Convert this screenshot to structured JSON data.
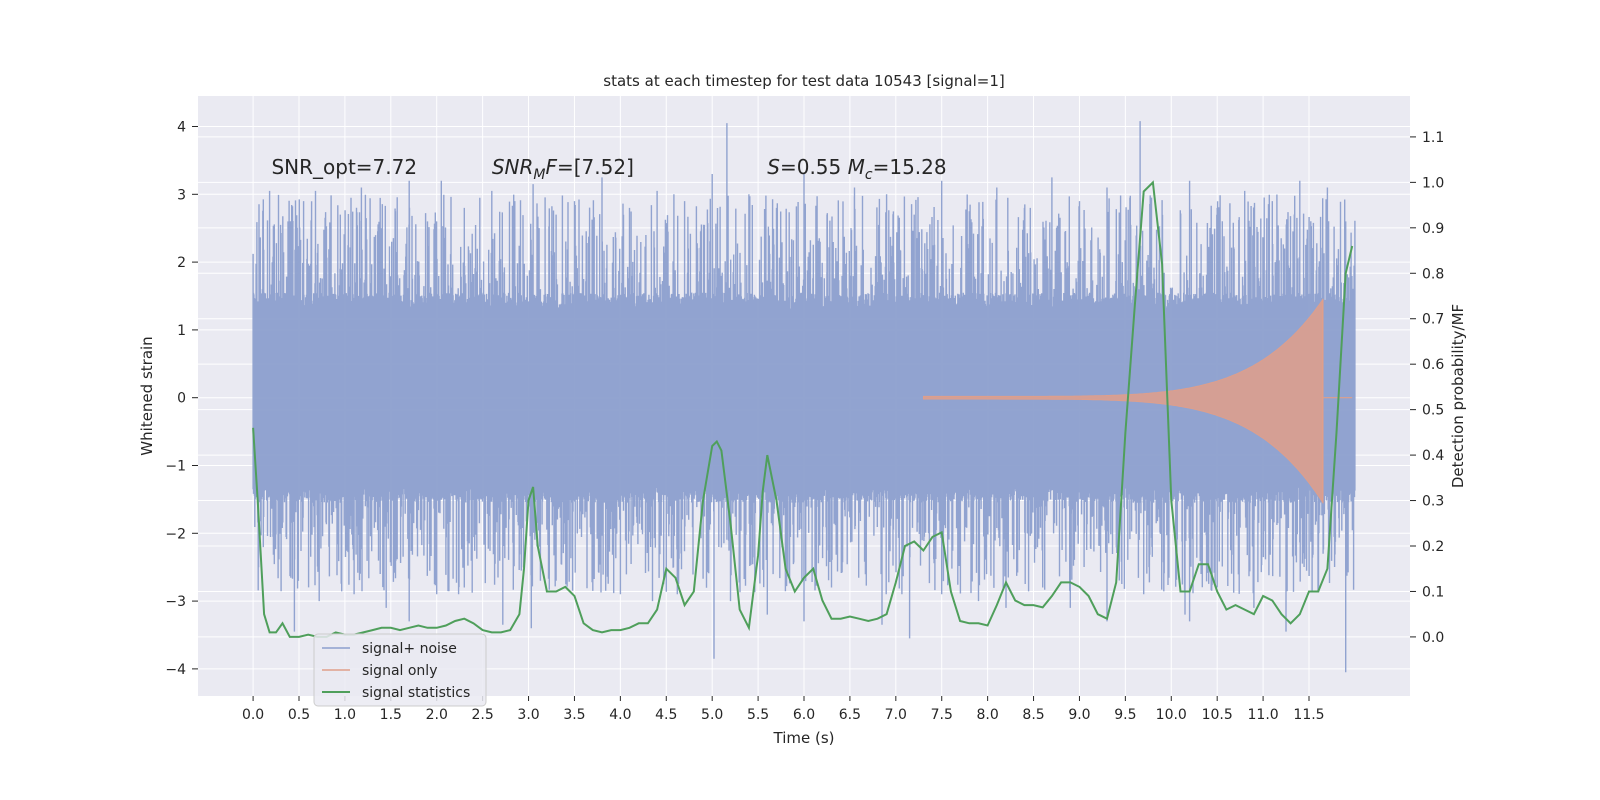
{
  "chart_data": {
    "type": "line",
    "title": "stats at each timestep for test data 10543 [signal=1]",
    "xlabel": "Time (s)",
    "ylabel": "Whitened strain",
    "y2label": "Detection probability/MF",
    "xlim": [
      -0.6,
      12.6
    ],
    "ylim": [
      -4.4,
      4.45
    ],
    "y2lim": [
      -0.13,
      1.19
    ],
    "x_ticks": [
      0.0,
      0.5,
      1.0,
      1.5,
      2.0,
      2.5,
      3.0,
      3.5,
      4.0,
      4.5,
      5.0,
      5.5,
      6.0,
      6.5,
      7.0,
      7.5,
      8.0,
      8.5,
      9.0,
      9.5,
      10.0,
      10.5,
      11.0,
      11.5
    ],
    "x_tick_labels": [
      "0.0",
      "0.5",
      "1.0",
      "1.5",
      "2.0",
      "2.5",
      "3.0",
      "3.5",
      "4.0",
      "4.5",
      "5.0",
      "5.5",
      "6.0",
      "6.5",
      "7.0",
      "7.5",
      "8.0",
      "8.5",
      "9.0",
      "9.5",
      "10.0",
      "10.5",
      "11.0",
      "11.5"
    ],
    "y_ticks": [
      -4,
      -3,
      -2,
      -1,
      0,
      1,
      2,
      3,
      4
    ],
    "y_tick_labels": [
      "−4",
      "−3",
      "−2",
      "−1",
      "0",
      "1",
      "2",
      "3",
      "4"
    ],
    "y2_ticks": [
      0.0,
      0.1,
      0.2,
      0.3,
      0.4,
      0.5,
      0.6,
      0.7,
      0.8,
      0.9,
      1.0,
      1.1
    ],
    "y2_tick_labels": [
      "0.0",
      "0.1",
      "0.2",
      "0.3",
      "0.4",
      "0.5",
      "0.6",
      "0.7",
      "0.8",
      "0.9",
      "1.0",
      "1.1"
    ],
    "grid": true,
    "legend_position": "lower-left",
    "annotations": [
      {
        "parts": [
          {
            "t": "SNR_opt=7.72",
            "style": "normal"
          }
        ],
        "x": 0.2,
        "y": 3.3
      },
      {
        "parts": [
          {
            "t": "SNR",
            "style": "italic"
          },
          {
            "t": "M",
            "style": "italic-sub"
          },
          {
            "t": "F",
            "style": "italic"
          },
          {
            "t": "=[7.52]",
            "style": "normal"
          }
        ],
        "x": 2.6,
        "y": 3.3
      },
      {
        "parts": [
          {
            "t": "S",
            "style": "italic"
          },
          {
            "t": "=0.55   ",
            "style": "normal"
          },
          {
            "t": "M",
            "style": "italic"
          },
          {
            "t": "c",
            "style": "italic-sub"
          },
          {
            "t": "=15.28",
            "style": "normal"
          }
        ],
        "x": 5.6,
        "y": 3.3
      }
    ],
    "series": [
      {
        "name": "signal+ noise",
        "axis": "left",
        "color": "#8c9fce",
        "style": "noise",
        "x_range": [
          0.0,
          12.0
        ],
        "band": 1.3,
        "spikes": [
          [
            0.18,
            3.05
          ],
          [
            0.38,
            2.6
          ],
          [
            0.55,
            2.9
          ],
          [
            0.68,
            3.05
          ],
          [
            0.95,
            2.7
          ],
          [
            1.18,
            3.1
          ],
          [
            1.4,
            2.5
          ],
          [
            1.55,
            2.75
          ],
          [
            1.7,
            3.2
          ],
          [
            1.9,
            2.6
          ],
          [
            2.05,
            3.2
          ],
          [
            2.3,
            2.8
          ],
          [
            2.6,
            3.05
          ],
          [
            2.85,
            2.9
          ],
          [
            3.05,
            3.15
          ],
          [
            3.3,
            2.7
          ],
          [
            3.5,
            2.9
          ],
          [
            3.8,
            3.25
          ],
          [
            4.1,
            2.8
          ],
          [
            4.4,
            3.05
          ],
          [
            4.7,
            2.9
          ],
          [
            5.0,
            3.3
          ],
          [
            5.16,
            4.05
          ],
          [
            5.4,
            3.0
          ],
          [
            5.7,
            2.8
          ],
          [
            6.0,
            3.3
          ],
          [
            6.25,
            2.7
          ],
          [
            6.55,
            3.1
          ],
          [
            6.9,
            3.0
          ],
          [
            7.2,
            2.7
          ],
          [
            7.5,
            3.2
          ],
          [
            7.8,
            2.75
          ],
          [
            8.1,
            3.1
          ],
          [
            8.4,
            2.8
          ],
          [
            8.7,
            3.25
          ],
          [
            9.0,
            2.9
          ],
          [
            9.3,
            3.1
          ],
          [
            9.66,
            4.08
          ],
          [
            9.9,
            2.9
          ],
          [
            10.2,
            3.2
          ],
          [
            10.5,
            2.8
          ],
          [
            10.8,
            3.05
          ],
          [
            11.1,
            2.9
          ],
          [
            11.4,
            3.2
          ],
          [
            11.7,
            3.1
          ],
          [
            11.9,
            2.6
          ],
          [
            0.45,
            -3.45
          ],
          [
            0.72,
            -3.0
          ],
          [
            1.1,
            -2.9
          ],
          [
            1.45,
            -3.1
          ],
          [
            1.7,
            -3.3
          ],
          [
            2.0,
            -2.9
          ],
          [
            2.3,
            -2.8
          ],
          [
            2.72,
            -3.35
          ],
          [
            3.03,
            -3.4
          ],
          [
            3.3,
            -2.7
          ],
          [
            3.7,
            -2.85
          ],
          [
            4.0,
            -2.9
          ],
          [
            4.35,
            -3.0
          ],
          [
            4.62,
            -2.9
          ],
          [
            5.02,
            -3.85
          ],
          [
            5.2,
            -3.0
          ],
          [
            5.6,
            -3.2
          ],
          [
            6.0,
            -3.3
          ],
          [
            6.3,
            -2.8
          ],
          [
            6.85,
            -3.35
          ],
          [
            7.15,
            -3.55
          ],
          [
            7.5,
            -2.9
          ],
          [
            7.9,
            -3.0
          ],
          [
            8.2,
            -3.1
          ],
          [
            8.6,
            -2.8
          ],
          [
            8.9,
            -3.1
          ],
          [
            9.3,
            -3.3
          ],
          [
            9.7,
            -2.9
          ],
          [
            10.15,
            -3.2
          ],
          [
            10.2,
            -3.3
          ],
          [
            10.5,
            -2.8
          ],
          [
            10.9,
            -3.1
          ],
          [
            11.25,
            -3.45
          ],
          [
            11.6,
            -2.7
          ],
          [
            11.9,
            -4.05
          ]
        ]
      },
      {
        "name": "signal only",
        "axis": "left",
        "color": "#e09f8a",
        "style": "chirp",
        "x_range": [
          7.3,
          11.65
        ],
        "peak_amplitude": 1.45,
        "trough_amplitude": -1.55
      },
      {
        "name": "signal statistics",
        "axis": "right",
        "color": "#4f9f5b",
        "style": "line",
        "x": [
          0.0,
          0.05,
          0.12,
          0.18,
          0.25,
          0.32,
          0.4,
          0.5,
          0.6,
          0.7,
          0.8,
          0.9,
          1.0,
          1.1,
          1.2,
          1.3,
          1.4,
          1.5,
          1.6,
          1.7,
          1.8,
          1.9,
          2.0,
          2.1,
          2.2,
          2.3,
          2.4,
          2.5,
          2.6,
          2.7,
          2.8,
          2.9,
          2.95,
          3.0,
          3.05,
          3.1,
          3.2,
          3.3,
          3.4,
          3.5,
          3.6,
          3.7,
          3.8,
          3.9,
          4.0,
          4.1,
          4.2,
          4.3,
          4.4,
          4.5,
          4.6,
          4.7,
          4.8,
          4.9,
          5.0,
          5.05,
          5.1,
          5.2,
          5.3,
          5.4,
          5.5,
          5.55,
          5.6,
          5.7,
          5.8,
          5.9,
          6.0,
          6.1,
          6.2,
          6.3,
          6.4,
          6.5,
          6.6,
          6.7,
          6.8,
          6.9,
          7.0,
          7.1,
          7.2,
          7.3,
          7.4,
          7.5,
          7.6,
          7.7,
          7.8,
          7.9,
          8.0,
          8.1,
          8.2,
          8.3,
          8.4,
          8.5,
          8.6,
          8.7,
          8.8,
          8.9,
          9.0,
          9.1,
          9.2,
          9.3,
          9.4,
          9.5,
          9.6,
          9.7,
          9.8,
          9.9,
          10.0,
          10.1,
          10.2,
          10.3,
          10.4,
          10.5,
          10.6,
          10.7,
          10.8,
          10.9,
          11.0,
          11.1,
          11.2,
          11.3,
          11.4,
          11.5,
          11.6,
          11.7,
          11.8,
          11.9,
          11.97
        ],
        "y": [
          0.46,
          0.3,
          0.05,
          0.01,
          0.01,
          0.03,
          0.0,
          0.0,
          0.005,
          0.0,
          0.0,
          0.01,
          0.005,
          0.005,
          0.01,
          0.015,
          0.02,
          0.02,
          0.015,
          0.02,
          0.025,
          0.02,
          0.02,
          0.025,
          0.035,
          0.04,
          0.03,
          0.015,
          0.01,
          0.01,
          0.015,
          0.05,
          0.15,
          0.3,
          0.33,
          0.2,
          0.1,
          0.1,
          0.11,
          0.09,
          0.03,
          0.015,
          0.01,
          0.015,
          0.015,
          0.02,
          0.03,
          0.03,
          0.06,
          0.15,
          0.13,
          0.07,
          0.1,
          0.3,
          0.42,
          0.43,
          0.41,
          0.25,
          0.06,
          0.02,
          0.18,
          0.32,
          0.4,
          0.3,
          0.15,
          0.1,
          0.13,
          0.15,
          0.08,
          0.04,
          0.04,
          0.045,
          0.04,
          0.035,
          0.04,
          0.05,
          0.12,
          0.2,
          0.21,
          0.19,
          0.22,
          0.23,
          0.1,
          0.035,
          0.03,
          0.03,
          0.025,
          0.07,
          0.12,
          0.08,
          0.07,
          0.07,
          0.065,
          0.09,
          0.12,
          0.12,
          0.11,
          0.09,
          0.05,
          0.04,
          0.12,
          0.45,
          0.72,
          0.98,
          1.0,
          0.82,
          0.3,
          0.1,
          0.1,
          0.16,
          0.16,
          0.1,
          0.06,
          0.07,
          0.06,
          0.05,
          0.09,
          0.08,
          0.05,
          0.03,
          0.05,
          0.1,
          0.1,
          0.15,
          0.45,
          0.8,
          0.86
        ]
      }
    ]
  }
}
